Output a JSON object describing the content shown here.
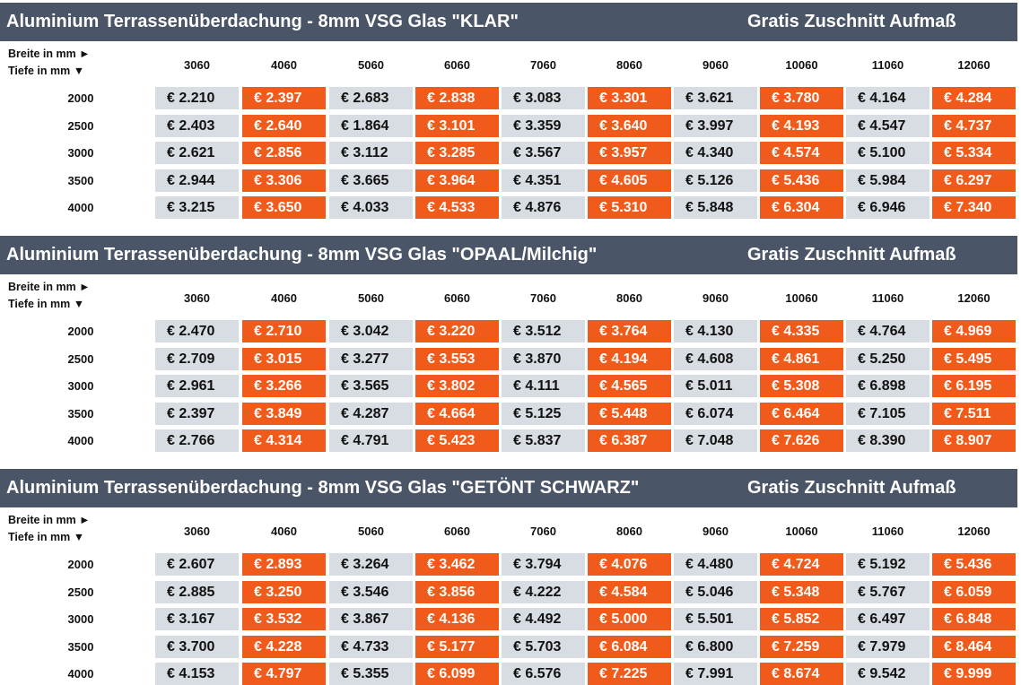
{
  "axis": {
    "width_label": "Breite in  mm ►",
    "depth_label": "Tiefe in  mm  ▼"
  },
  "columns": [
    "3060",
    "4060",
    "5060",
    "6060",
    "7060",
    "8060",
    "9060",
    "10060",
    "11060",
    "12060"
  ],
  "rows": [
    "2000",
    "2500",
    "3000",
    "3500",
    "4000"
  ],
  "colors": {
    "header_bg": "#4a5568",
    "grey_cell": "#d8dde3",
    "orange_cell": "#f05a1a"
  },
  "sections": [
    {
      "title": "Aluminium Terrassenüberdachung - 8mm VSG Glas  \"KLAR\"",
      "gratis": "Gratis Zuschnitt Aufmaß",
      "prices": [
        [
          "€ 2.210",
          "€ 2.397",
          "€ 2.683",
          "€ 2.838",
          "€ 3.083",
          "€ 3.301",
          "€ 3.621",
          "€ 3.780",
          "€ 4.164",
          "€ 4.284"
        ],
        [
          "€ 2.403",
          "€ 2.640",
          "€ 1.864",
          "€ 3.101",
          "€ 3.359",
          "€ 3.640",
          "€ 3.997",
          "€ 4.193",
          "€ 4.547",
          "€ 4.737"
        ],
        [
          "€ 2.621",
          "€ 2.856",
          "€ 3.112",
          "€ 3.285",
          "€ 3.567",
          "€ 3.957",
          "€ 4.340",
          "€ 4.574",
          "€ 5.100",
          "€ 5.334"
        ],
        [
          "€ 2.944",
          "€ 3.306",
          "€ 3.665",
          "€ 3.964",
          "€ 4.351",
          "€ 4.605",
          "€ 5.126",
          "€ 5.436",
          "€ 5.984",
          "€ 6.297"
        ],
        [
          "€ 3.215",
          "€ 3.650",
          "€ 4.033",
          "€ 4.533",
          "€ 4.876",
          "€ 5.310",
          "€ 5.848",
          "€ 6.304",
          "€ 6.946",
          "€ 7.340"
        ]
      ]
    },
    {
      "title": "Aluminium Terrassenüberdachung - 8mm VSG Glas  \"OPAAL/Milchig\"",
      "gratis": "Gratis Zuschnitt Aufmaß",
      "prices": [
        [
          "€ 2.470",
          "€ 2.710",
          "€ 3.042",
          "€ 3.220",
          "€ 3.512",
          "€ 3.764",
          "€ 4.130",
          "€ 4.335",
          "€ 4.764",
          "€ 4.969"
        ],
        [
          "€ 2.709",
          "€ 3.015",
          "€ 3.277",
          "€ 3.553",
          "€ 3.870",
          "€ 4.194",
          "€ 4.608",
          "€ 4.861",
          "€ 5.250",
          "€ 5.495"
        ],
        [
          "€ 2.961",
          "€ 3.266",
          "€ 3.565",
          "€ 3.802",
          "€ 4.111",
          "€ 4.565",
          "€ 5.011",
          "€ 5.308",
          "€ 6.898",
          "€ 6.195"
        ],
        [
          "€ 2.397",
          "€ 3.849",
          "€ 4.287",
          "€ 4.664",
          "€ 5.125",
          "€ 5.448",
          "€ 6.074",
          "€ 6.464",
          "€ 7.105",
          "€ 7.511"
        ],
        [
          "€ 2.766",
          "€ 4.314",
          "€ 4.791",
          "€ 5.423",
          "€ 5.837",
          "€ 6.387",
          "€ 7.048",
          "€ 7.626",
          "€ 8.390",
          "€ 8.907"
        ]
      ]
    },
    {
      "title": "Aluminium Terrassenüberdachung - 8mm VSG Glas  \"GETÖNT SCHWARZ\"",
      "gratis": "Gratis Zuschnitt Aufmaß",
      "prices": [
        [
          "€ 2.607",
          "€ 2.893",
          "€ 3.264",
          "€ 3.462",
          "€ 3.794",
          "€ 4.076",
          "€ 4.480",
          "€ 4.724",
          "€ 5.192",
          "€ 5.436"
        ],
        [
          "€ 2.885",
          "€ 3.250",
          "€ 3.546",
          "€ 3.856",
          "€ 4.222",
          "€ 4.584",
          "€ 5.046",
          "€ 5.348",
          "€ 5.767",
          "€ 6.059"
        ],
        [
          "€ 3.167",
          "€ 3.532",
          "€ 3.867",
          "€ 4.136",
          "€ 4.492",
          "€ 5.000",
          "€ 5.501",
          "€ 5.852",
          "€ 6.497",
          "€ 6.848"
        ],
        [
          "€ 3.700",
          "€ 4.228",
          "€ 4.733",
          "€ 5.177",
          "€ 5.703",
          "€ 6.084",
          "€ 6.800",
          "€ 7.259",
          "€ 7.979",
          "€ 8.464"
        ],
        [
          "€ 4.153",
          "€ 4.797",
          "€ 5.355",
          "€ 6.099",
          "€ 6.576",
          "€ 7.225",
          "€ 7.991",
          "€ 8.674",
          "€ 9.542",
          "€ 9.999"
        ]
      ]
    }
  ]
}
